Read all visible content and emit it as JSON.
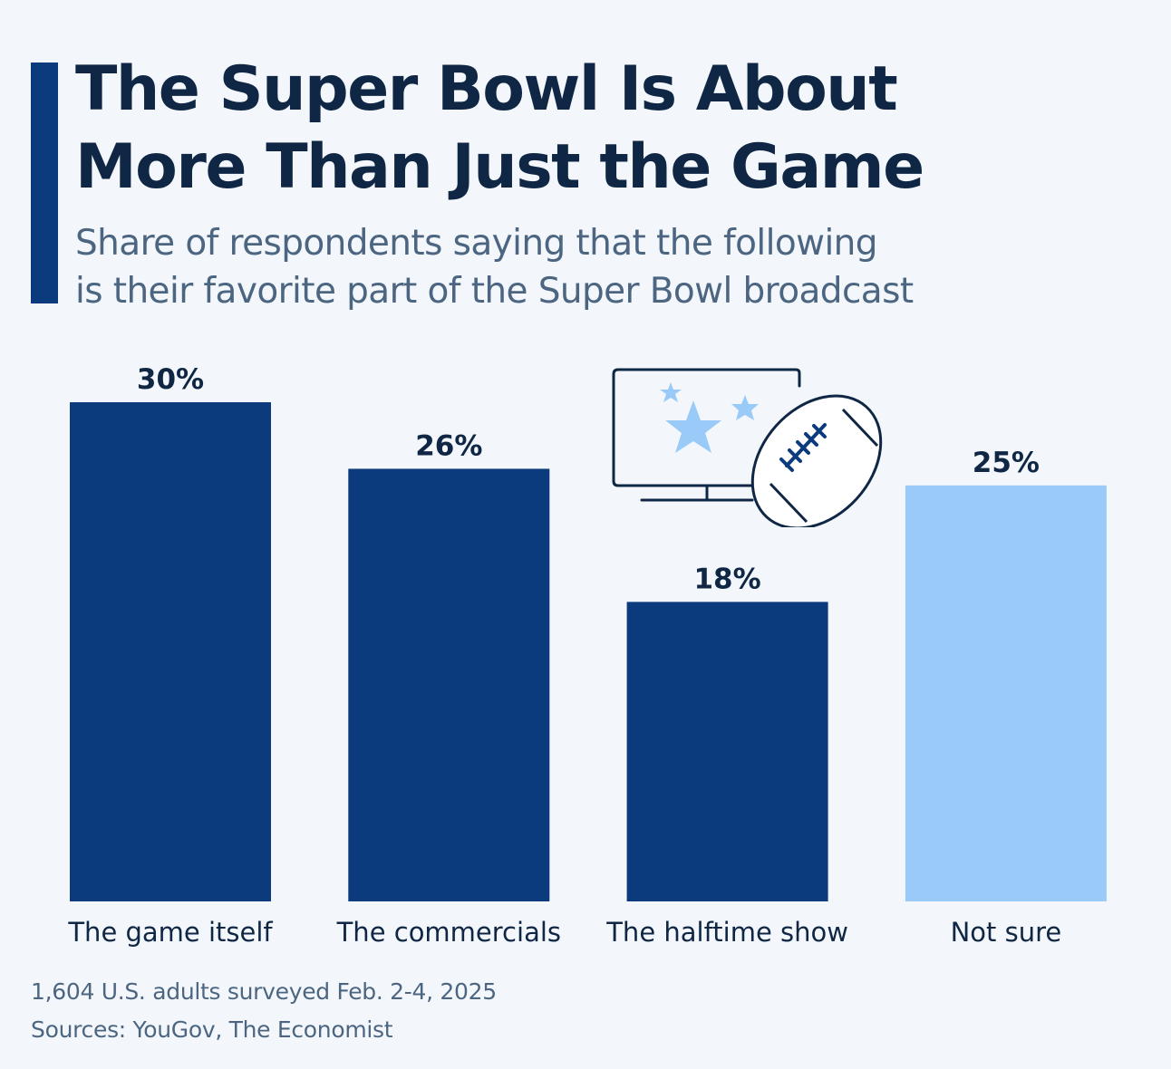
{
  "header": {
    "title": "The Super Bowl Is About\nMore Than Just the Game",
    "subtitle": "Share of respondents saying that the following\nis their favorite part of the Super Bowl broadcast"
  },
  "footer": {
    "survey_note": "1,604 U.S. adults surveyed Feb. 2-4, 2025",
    "sources": "Sources: YouGov, The Economist"
  },
  "illustration": {
    "icons": [
      "tv-screen-icon",
      "star-icon",
      "football-icon"
    ]
  },
  "colors": {
    "primary_bar": "#0b3a7d",
    "highlight_bar": "#99caf8",
    "text_dark": "#0f2744",
    "text_muted": "#4c6682",
    "background": "#f3f7fb"
  },
  "chart_data": {
    "type": "bar",
    "title": "The Super Bowl Is About More Than Just the Game",
    "subtitle": "Share of respondents saying that the following is their favorite part of the Super Bowl broadcast",
    "xlabel": "",
    "ylabel": "",
    "categories": [
      "The game itself",
      "The commercials",
      "The halftime show",
      "Not sure"
    ],
    "values": [
      30,
      26,
      18,
      25
    ],
    "value_labels": [
      "30%",
      "26%",
      "18%",
      "25%"
    ],
    "bar_colors": [
      "#0b3a7d",
      "#0b3a7d",
      "#0b3a7d",
      "#99caf8"
    ],
    "unit": "%",
    "ylim": [
      0,
      30
    ],
    "grid": false,
    "legend": "none"
  }
}
